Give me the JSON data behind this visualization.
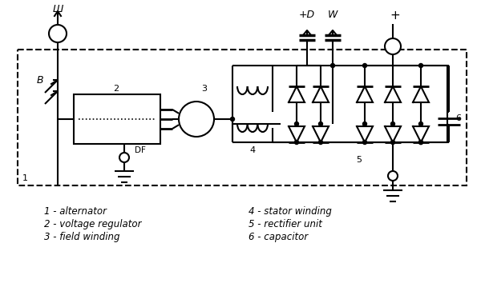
{
  "bg": "#ffffff",
  "lc": "#000000",
  "legend": [
    "1 - alternator",
    "2 - voltage regulator",
    "3 - field winding",
    "4 - stator winding",
    "5 - rectifier unit",
    "6 - capacitor"
  ]
}
